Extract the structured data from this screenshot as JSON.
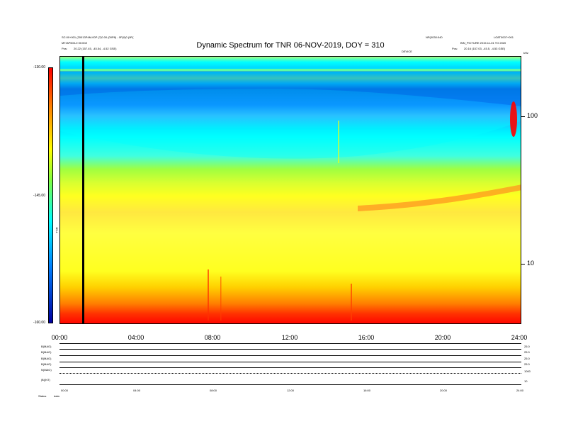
{
  "chart_data": {
    "type": "heatmap",
    "title": "Dynamic Spectrum for TNR 06-NOV-2019, DOY = 310",
    "x": [
      "00:00",
      "04:00",
      "08:00",
      "12:00",
      "16:00",
      "20:00",
      "24:00"
    ],
    "xlim": [
      "00:00",
      "24:00"
    ],
    "y_right_ticks": [
      "100",
      "10"
    ],
    "y_scale": "log",
    "colorbar": {
      "ticks": [
        "-130.00",
        "-145.00",
        "-160.00"
      ],
      "range": [
        -160,
        -130
      ],
      "label": "TNR",
      "colors": [
        "#ff0000",
        "#ff8000",
        "#ffff00",
        "#80ff40",
        "#00ffff",
        "#0080ff",
        "#0000a0"
      ]
    },
    "grid": false
  },
  "header": {
    "left_line1": "SC:00+001 (20013P4M-00P (7)0.00 (00P8) - 0P(0)0 (0P(",
    "left_line2": "MT/AP503-0 00:00Z",
    "left_line3_label": "Pos:",
    "left_line3_value": "20.22 (157.45, -45.54, -4.52 GSE)",
    "right_line1a": "NP(0030:040",
    "right_line1b": "LO8T0007+001",
    "right_line2": "BIN_PICTURE 2019-11-01 TO 2020",
    "right_line3_label": "Pos:",
    "right_line3_value": "20.16 (157.03, -45.5, -4.53 GSE)",
    "mid_label": "DEVICE",
    "corner_label": "kHz"
  },
  "bottom_panel": {
    "row_labels": [
      "B(MAG)",
      "B(MAG)",
      "B(MAG)",
      "B(MAG)",
      "N(MAG)",
      "|B|(NT)"
    ],
    "right_values": [
      "25.0",
      "25.0",
      "25.0",
      "25.0",
      "1000",
      "10"
    ],
    "time_ticks": [
      "00:00",
      "04:00",
      "08:00",
      "12:00",
      "16:00",
      "20:00",
      "24:00"
    ],
    "footer_left": "Status",
    "footer_right": "data"
  }
}
